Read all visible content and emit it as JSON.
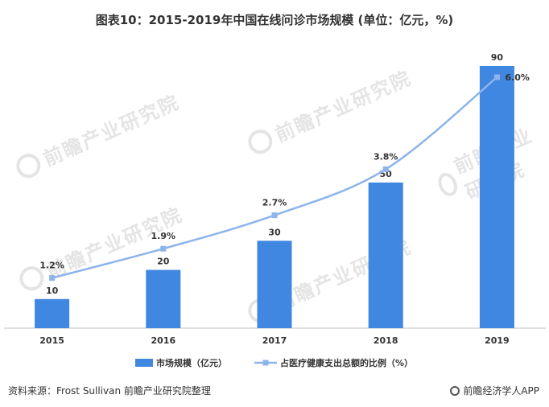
{
  "chart_data": {
    "type": "bar",
    "title": "图表10：2015-2019年中国在线问诊市场规模 (单位：亿元，%)",
    "categories": [
      "2015",
      "2016",
      "2017",
      "2018",
      "2019"
    ],
    "series": [
      {
        "name": "市场规模（亿元）",
        "type": "bar",
        "values": [
          10,
          20,
          30,
          50,
          90
        ],
        "labels": [
          "10",
          "20",
          "30",
          "50",
          "90"
        ]
      },
      {
        "name": "占医疗健康支出总额的比例（%）",
        "type": "line",
        "values": [
          1.2,
          1.9,
          2.7,
          3.8,
          6.0
        ],
        "labels": [
          "1.2%",
          "1.9%",
          "2.7%",
          "3.8%",
          "6.0%"
        ]
      }
    ],
    "ylim_bar": [
      0,
      90
    ],
    "ylim_line": [
      0,
      6.0
    ],
    "grid": false,
    "legend_position": "bottom",
    "colors": {
      "bar": "#3f87e0",
      "line": "#8db4ec"
    }
  },
  "footer": {
    "source": "资料来源：Frost Sullivan  前瞻产业研究院整理",
    "brand": "前瞻经济学人APP"
  },
  "watermark": {
    "text": "前瞻产业研究院"
  }
}
